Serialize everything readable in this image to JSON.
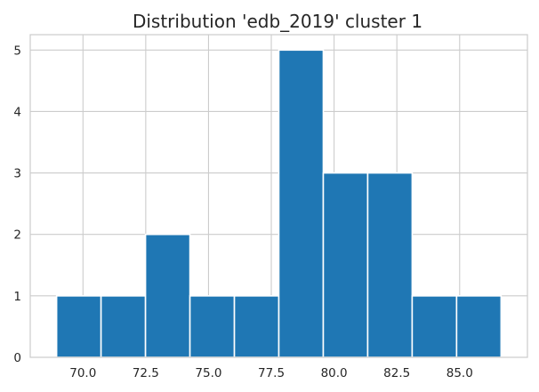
{
  "chart_data": {
    "type": "bar",
    "title": "Distribution 'edb_2019' cluster 1",
    "xlabel": "",
    "ylabel": "",
    "bin_edges": [
      68.95,
      70.72,
      72.49,
      74.26,
      76.03,
      77.8,
      79.57,
      81.34,
      83.11,
      84.88,
      86.65
    ],
    "counts": [
      1,
      1,
      2,
      1,
      1,
      5,
      3,
      3,
      1,
      1
    ],
    "xlim": [
      67.9,
      87.7
    ],
    "ylim": [
      0,
      5.25
    ],
    "x_ticks": [
      "70.0",
      "72.5",
      "75.0",
      "77.5",
      "80.0",
      "82.5",
      "85.0"
    ],
    "y_ticks": [
      "0",
      "1",
      "2",
      "3",
      "4",
      "5"
    ],
    "grid": true,
    "bar_color": "#1f77b4",
    "grid_color": "#cccccc"
  }
}
